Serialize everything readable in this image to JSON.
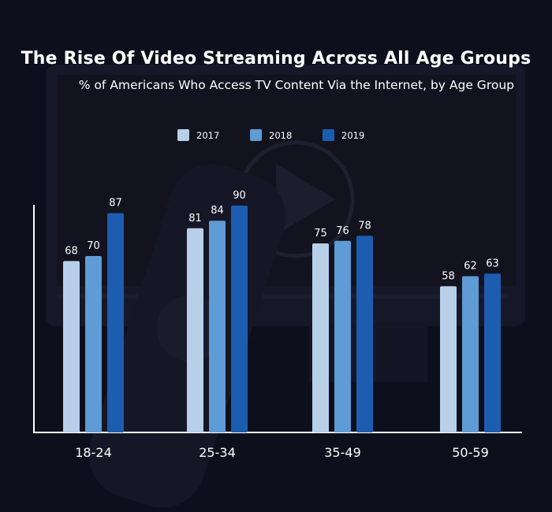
{
  "chart_data": {
    "type": "bar",
    "title": "The Rise Of Video Streaming Across All Age Groups",
    "subtitle": "% of Americans Who Access TV Content Via the Internet, by Age Group",
    "categories": [
      "18-24",
      "25-34",
      "35-49",
      "50-59"
    ],
    "series": [
      {
        "name": "2017",
        "values": [
          68,
          81,
          75,
          58
        ],
        "color": "#b8cfe8"
      },
      {
        "name": "2018",
        "values": [
          70,
          84,
          76,
          62
        ],
        "color": "#5f9bd4"
      },
      {
        "name": "2019",
        "values": [
          87,
          90,
          78,
          63
        ],
        "color": "#1c5db0"
      }
    ],
    "ylim": [
      0,
      100
    ],
    "grid": false,
    "legend_position": "top-center"
  },
  "colors": {
    "background": "#0e0f1c",
    "text": "#ffffff",
    "axis": "#ffffff"
  }
}
